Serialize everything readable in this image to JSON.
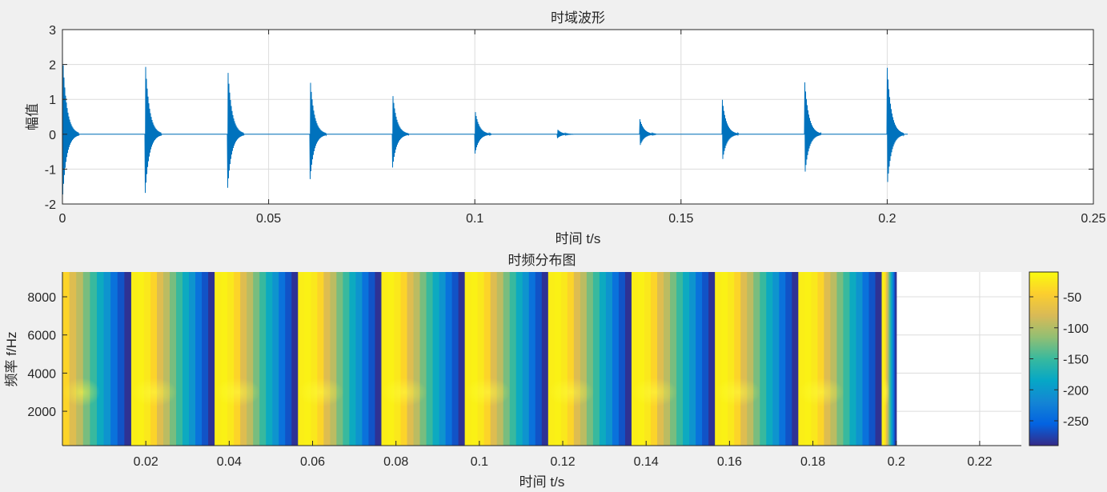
{
  "chart_data": [
    {
      "type": "line",
      "title": "时域波形",
      "xlabel": "时间 t/s",
      "ylabel": "幅值",
      "xlim": [
        0,
        0.25
      ],
      "ylim": [
        -2,
        3
      ],
      "xticks": [
        0,
        0.05,
        0.1,
        0.15,
        0.2,
        0.25
      ],
      "xtick_labels": [
        "0",
        "0.05",
        "0.1",
        "0.15",
        "0.2",
        "0.25"
      ],
      "yticks": [
        -2,
        -1,
        0,
        1,
        2,
        3
      ],
      "ytick_labels": [
        "-2",
        "-1",
        "0",
        "1",
        "2",
        "3"
      ],
      "grid": true,
      "series": [
        {
          "color": "#0072bd",
          "description": "decaying oscillation bursts repeating every 0.02 s",
          "burst_times": [
            0,
            0.02,
            0.04,
            0.06,
            0.08,
            0.1,
            0.12,
            0.14,
            0.16,
            0.18,
            0.2
          ],
          "peak_max": 2.4,
          "peak_min": -1.9,
          "burst_duration": 0.004,
          "signal_end": 0.205
        }
      ]
    },
    {
      "type": "heatmap",
      "title": "时频分布图",
      "xlabel": "时间 t/s",
      "ylabel": "频率 f/Hz",
      "xlim": [
        0,
        0.23
      ],
      "ylim": [
        200,
        9300
      ],
      "xticks": [
        0.02,
        0.04,
        0.06,
        0.08,
        0.1,
        0.12,
        0.14,
        0.16,
        0.18,
        0.2,
        0.22
      ],
      "xtick_labels": [
        "0.02",
        "0.04",
        "0.06",
        "0.08",
        "0.1",
        "0.12",
        "0.14",
        "0.16",
        "0.18",
        "0.2",
        "0.22"
      ],
      "yticks": [
        2000,
        4000,
        6000,
        8000
      ],
      "ytick_labels": [
        "2000",
        "4000",
        "6000",
        "8000"
      ],
      "grid": true,
      "colormap": "parula",
      "clim": [
        -290,
        -10
      ],
      "colorbar_ticks": [
        -50,
        -100,
        -150,
        -200,
        -250
      ],
      "colorbar_tick_labels": [
        "-50",
        "-100",
        "-150",
        "-200",
        "-250"
      ],
      "data_end_time": 0.2,
      "burst_starts": [
        0.0165,
        0.0365,
        0.0565,
        0.0765,
        0.0965,
        0.1165,
        0.1365,
        0.1565,
        0.1765,
        0.1965
      ],
      "level_profile_start_to_end": [
        -20,
        -18,
        -25,
        -40,
        -75,
        -95,
        -125,
        -150,
        -180,
        -205,
        -240,
        -265,
        -285
      ],
      "resonance_band_hz": 3000
    }
  ]
}
